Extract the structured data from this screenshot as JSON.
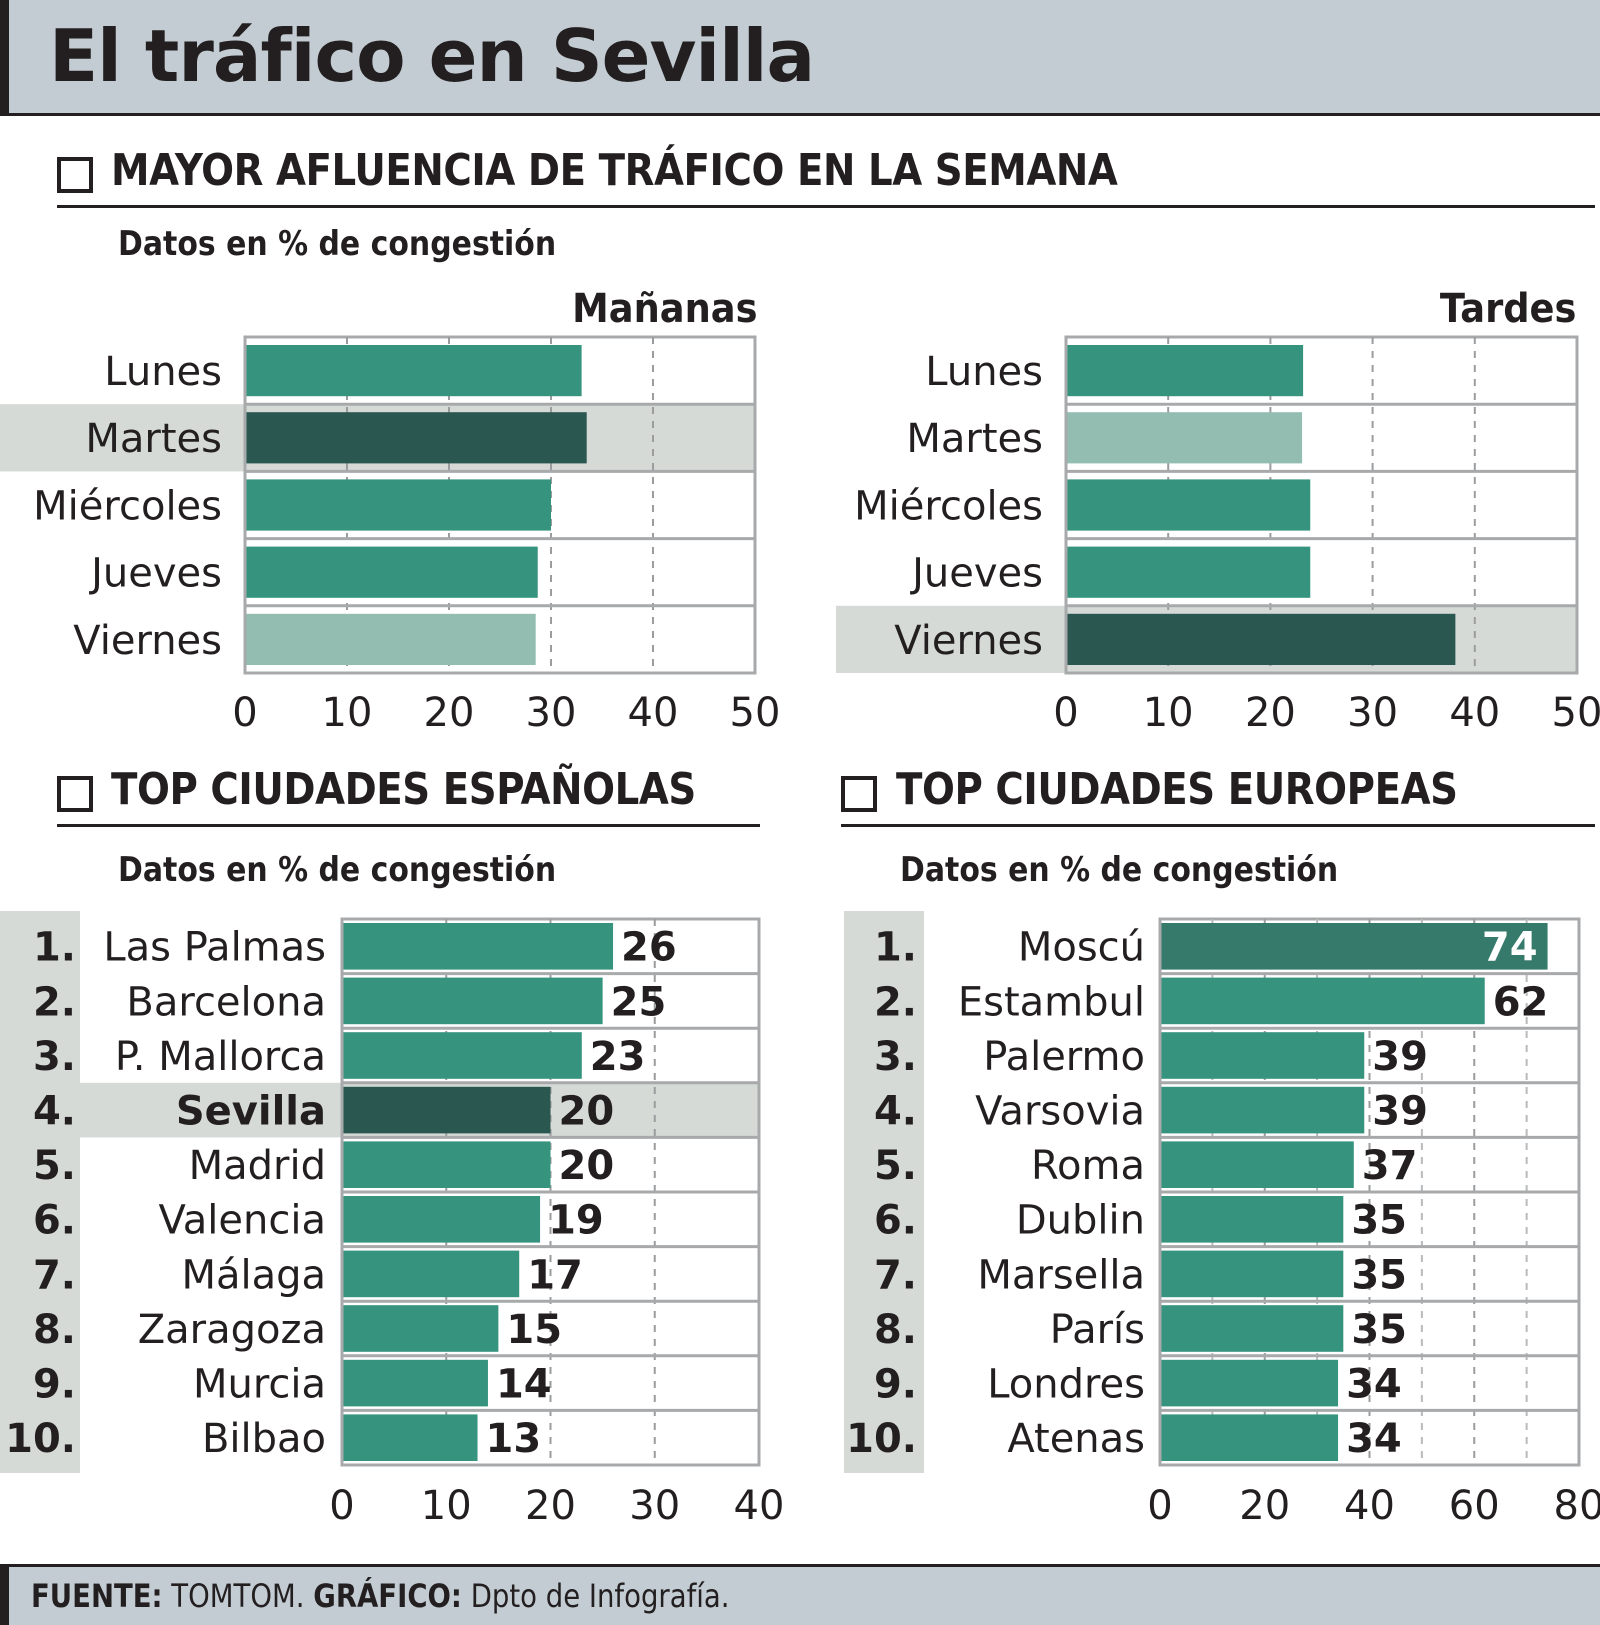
{
  "header": {
    "title": "El tráfico en Sevilla"
  },
  "sections": {
    "week": {
      "title": "MAYOR AFLUENCIA DE TRÁFICO EN LA SEMANA",
      "subtitle": "Datos en % de congestión"
    },
    "spain": {
      "title": "TOP CIUDADES ESPAÑOLAS",
      "subtitle": "Datos en % de congestión"
    },
    "europe": {
      "title": "TOP CIUDADES EUROPEAS",
      "subtitle": "Datos en % de congestión"
    }
  },
  "footer": {
    "source_label": "FUENTE:",
    "source_value": "TOMTOM.",
    "graphic_label": "GRÁFICO:",
    "graphic_value": "Dpto de Infografía."
  },
  "colors": {
    "bar": "#36937e",
    "bar_dark": "#2a5750",
    "bar_light": "#93bdb0",
    "bar_top": "#367a6c",
    "highlight_band": "#d5dad7",
    "rank_band": "#d5dad7",
    "header_bg": "#c3ccd2",
    "text": "#231f20"
  },
  "chart_data": [
    {
      "id": "mananas",
      "type": "bar",
      "orientation": "horizontal",
      "title": "Mañanas",
      "xlabel": "",
      "ylabel": "",
      "unit": "% de congestión",
      "categories": [
        "Lunes",
        "Martes",
        "Miércoles",
        "Jueves",
        "Viernes"
      ],
      "values": [
        33,
        33.5,
        30,
        28.7,
        28.5
      ],
      "styles": [
        "normal",
        "highlight",
        "normal",
        "normal",
        "light"
      ],
      "highlight_row": "Martes",
      "xlim": [
        0,
        50
      ],
      "xticks": [
        0,
        10,
        20,
        30,
        40,
        50
      ],
      "grid": true
    },
    {
      "id": "tardes",
      "type": "bar",
      "orientation": "horizontal",
      "title": "Tardes",
      "xlabel": "",
      "ylabel": "",
      "unit": "% de congestión",
      "categories": [
        "Lunes",
        "Martes",
        "Miércoles",
        "Jueves",
        "Viernes"
      ],
      "values": [
        23.2,
        23.1,
        23.9,
        23.9,
        38.1
      ],
      "styles": [
        "normal",
        "light",
        "normal",
        "normal",
        "highlight"
      ],
      "highlight_row": "Viernes",
      "xlim": [
        0,
        50
      ],
      "xticks": [
        0,
        10,
        20,
        30,
        40,
        50
      ],
      "grid": true
    },
    {
      "id": "spain",
      "type": "bar",
      "orientation": "horizontal",
      "title": "TOP CIUDADES ESPAÑOLAS",
      "xlabel": "",
      "ylabel": "",
      "unit": "% de congestión",
      "ranks": [
        "1.",
        "2.",
        "3.",
        "4.",
        "5.",
        "6.",
        "7.",
        "8.",
        "9.",
        "10."
      ],
      "categories": [
        "Las Palmas",
        "Barcelona",
        "P. Mallorca",
        "Sevilla",
        "Madrid",
        "Valencia",
        "Málaga",
        "Zaragoza",
        "Murcia",
        "Bilbao"
      ],
      "values": [
        26,
        25,
        23,
        20,
        20,
        19,
        17,
        15,
        14,
        13
      ],
      "labels": [
        "26",
        "25",
        "23",
        "20",
        "20",
        "19",
        "17",
        "15",
        "14",
        "13"
      ],
      "styles": [
        "normal",
        "normal",
        "normal",
        "highlight",
        "normal",
        "normal",
        "normal",
        "normal",
        "normal",
        "normal"
      ],
      "highlight_row": "Sevilla",
      "xlim": [
        0,
        40
      ],
      "xticks": [
        0,
        10,
        20,
        30,
        40
      ],
      "grid": true
    },
    {
      "id": "europe",
      "type": "bar",
      "orientation": "horizontal",
      "title": "TOP CIUDADES EUROPEAS",
      "xlabel": "",
      "ylabel": "",
      "unit": "% de congestión",
      "ranks": [
        "1.",
        "2.",
        "3.",
        "4.",
        "5.",
        "6.",
        "7.",
        "8.",
        "9.",
        "10."
      ],
      "categories": [
        "Moscú",
        "Estambul",
        "Palermo",
        "Varsovia",
        "Roma",
        "Dublin",
        "Marsella",
        "París",
        "Londres",
        "Atenas"
      ],
      "values": [
        74,
        62,
        39,
        39,
        37,
        35,
        35,
        35,
        34,
        34
      ],
      "labels": [
        "74",
        "62",
        "39",
        "39",
        "37",
        "35",
        "35",
        "35",
        "34",
        "34"
      ],
      "styles": [
        "top",
        "normal",
        "normal",
        "normal",
        "normal",
        "normal",
        "normal",
        "normal",
        "normal",
        "normal"
      ],
      "xlim": [
        0,
        80
      ],
      "xticks": [
        0,
        20,
        40,
        60,
        80
      ],
      "grid": true
    }
  ]
}
